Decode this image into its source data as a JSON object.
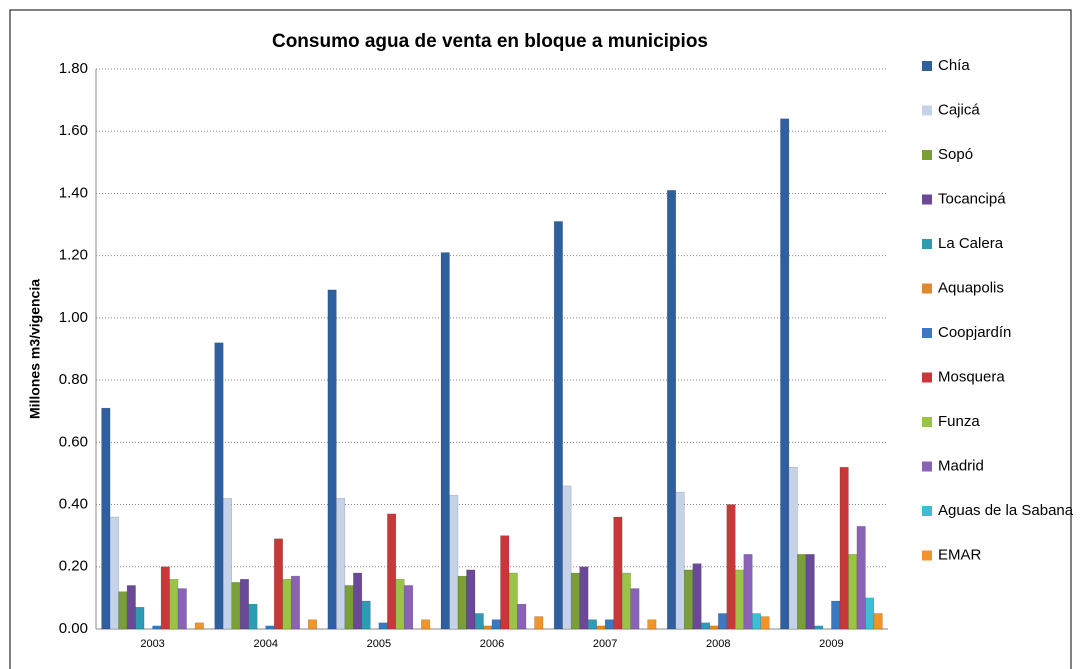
{
  "chart_data": {
    "type": "bar",
    "title": "Consumo agua de venta en bloque a municipios",
    "y_label": "Millones m3/vigencia",
    "categories": [
      "2003",
      "2004",
      "2005",
      "2006",
      "2007",
      "2008",
      "2009"
    ],
    "series": [
      {
        "name": "Chía",
        "color": "#2f5f9f",
        "values": [
          0.71,
          0.92,
          1.09,
          1.21,
          1.31,
          1.41,
          1.64
        ]
      },
      {
        "name": "Cajicá",
        "color": "#c5d2e8",
        "values": [
          0.36,
          0.42,
          0.42,
          0.43,
          0.46,
          0.44,
          0.52
        ]
      },
      {
        "name": "Sopó",
        "color": "#7a9e38",
        "values": [
          0.12,
          0.15,
          0.14,
          0.17,
          0.18,
          0.19,
          0.24
        ]
      },
      {
        "name": "Tocancipá",
        "color": "#6a4a98",
        "values": [
          0.14,
          0.16,
          0.18,
          0.19,
          0.2,
          0.21,
          0.24
        ]
      },
      {
        "name": "La Calera",
        "color": "#2e9bb2",
        "values": [
          0.07,
          0.08,
          0.09,
          0.05,
          0.03,
          0.02,
          0.01
        ]
      },
      {
        "name": "Aquapolis",
        "color": "#e0882a",
        "values": [
          0,
          0,
          0,
          0.01,
          0.01,
          0.01,
          0
        ]
      },
      {
        "name": "Coopjardín",
        "color": "#3a78c0",
        "values": [
          0.01,
          0.01,
          0.02,
          0.03,
          0.03,
          0.05,
          0.09
        ]
      },
      {
        "name": "Mosquera",
        "color": "#c8383a",
        "values": [
          0.2,
          0.29,
          0.37,
          0.3,
          0.36,
          0.4,
          0.52
        ]
      },
      {
        "name": "Funza",
        "color": "#9bc348",
        "values": [
          0.16,
          0.16,
          0.16,
          0.18,
          0.18,
          0.19,
          0.24
        ]
      },
      {
        "name": "Madrid",
        "color": "#8a62b6",
        "values": [
          0.13,
          0.17,
          0.14,
          0.08,
          0.13,
          0.24,
          0.33
        ]
      },
      {
        "name": "Aguas de la Sabana",
        "color": "#3cbfd6",
        "values": [
          0,
          0,
          0,
          0,
          0,
          0.05,
          0.1
        ]
      },
      {
        "name": "EMAR",
        "color": "#f0942c",
        "values": [
          0.02,
          0.03,
          0.03,
          0.04,
          0.03,
          0.04,
          0.05
        ]
      }
    ],
    "ylim": [
      0,
      1.8
    ],
    "yticks": [
      {
        "value": 0,
        "label": "0.00"
      },
      {
        "value": 0.2,
        "label": "0.20"
      },
      {
        "value": 0.4,
        "label": "0.40"
      },
      {
        "value": 0.6,
        "label": "0.60"
      },
      {
        "value": 0.8,
        "label": "0.80"
      },
      {
        "value": 1.0,
        "label": "1.00"
      },
      {
        "value": 1.2,
        "label": "1.20"
      },
      {
        "value": 1.4,
        "label": "1.40"
      },
      {
        "value": 1.6,
        "label": "1.60"
      },
      {
        "value": 1.8,
        "label": "1.80"
      }
    ],
    "grid": true,
    "legend": "right"
  }
}
